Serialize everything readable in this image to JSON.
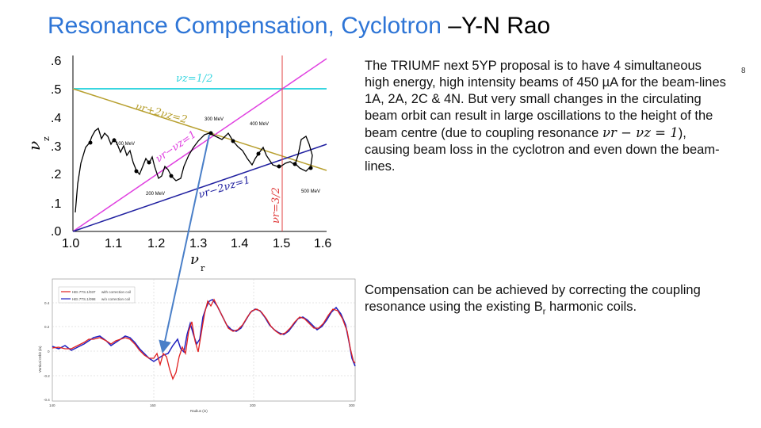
{
  "slide": {
    "title_main": "Resonance Compensation, Cyclotron",
    "title_author": " –Y-N Rao",
    "slide_number": "8"
  },
  "top_plot": {
    "y_ticks": [
      ".6",
      ".5",
      ".4",
      ".3",
      ".2",
      ".1",
      ".0"
    ],
    "x_ticks": [
      "1.0",
      "1.1",
      "1.2",
      "1.3",
      "1.4",
      "1.5",
      "1.6"
    ],
    "y_axis_label": "ν",
    "y_axis_sub": "z",
    "x_axis_label": "ν",
    "x_axis_sub": "r",
    "lines": {
      "nu_z_half": "νz=1/2",
      "nu_r_plus_2nu_z": "νr+2νz=2",
      "nu_r_minus_nu_z": "νr−νz=1",
      "nu_r_minus_2nu_z": "νr−2νz=1",
      "nu_r_three_halves": "νr=3/2"
    },
    "energy_labels": {
      "e100": "100 MeV",
      "e200": "200 MeV",
      "e300": "300 MeV",
      "e400": "400 MeV",
      "e500": "500 MeV"
    },
    "colors": {
      "cyan": "#38d6e0",
      "olive": "#b8a030",
      "magenta": "#e040e0",
      "navy": "#2020a0",
      "red": "#e04040",
      "arrow": "#4a7fc8"
    }
  },
  "bottom_plot": {
    "legend": [
      {
        "file": "HEI.7TS.1/037",
        "desc": "with correction coil"
      },
      {
        "file": "HEI.7TS.1/098",
        "desc": "w/o correction coil"
      }
    ],
    "y_ticks": [
      "0.4",
      "0.2",
      "0",
      "-0.2",
      "-0.4"
    ],
    "x_ticks": [
      "140",
      "160",
      "200",
      "300"
    ],
    "y_axis_label": "Vertical Orbit (in)",
    "x_axis_label": "Radius (in)",
    "colors": {
      "with": "#e02020",
      "without": "#2020c0"
    }
  },
  "text": {
    "para1_a": "The TRIUMF next 5YP proposal is to have 4 simultaneous high energy, high intensity beams of 450 µA for the beam-lines 1A, 2A, 2C & 4N. But very small changes in the circulating beam orbit can result in large oscillations to the height of the beam centre (due to coupling resonance ",
    "para1_formula": "νr − νz = 1",
    "para1_b": "), causing beam loss in the cyclotron and even down the beam-lines.",
    "para2_a": "Compensation can be achieved by correcting the coupling resonance using the existing B",
    "para2_sub": "r",
    "para2_b": " harmonic coils."
  }
}
